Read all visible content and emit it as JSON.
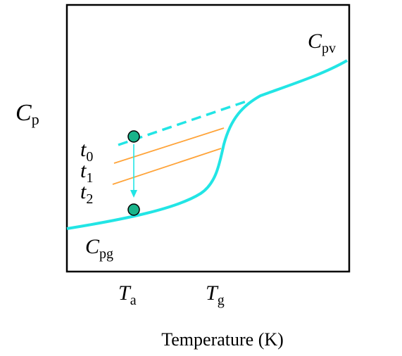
{
  "diagram": {
    "y_axis_label": {
      "main": "C",
      "sub": "p"
    },
    "curve_label_glass": {
      "main": "C",
      "sub": "pg"
    },
    "curve_label_liquid": {
      "main": "C",
      "sub": "pv"
    },
    "time_labels": [
      {
        "main": "t",
        "sub": "0"
      },
      {
        "main": "t",
        "sub": "1"
      },
      {
        "main": "t",
        "sub": "2"
      }
    ],
    "x_tick_labels": [
      {
        "main": "T",
        "sub": "a"
      },
      {
        "main": "T",
        "sub": "g"
      }
    ],
    "x_axis_title": "Temperature (K)",
    "colors": {
      "curve": "#22e5e5",
      "isochrone_lines": "#ffa43a",
      "markers": "#1ab38a",
      "frame": "#000000"
    }
  }
}
